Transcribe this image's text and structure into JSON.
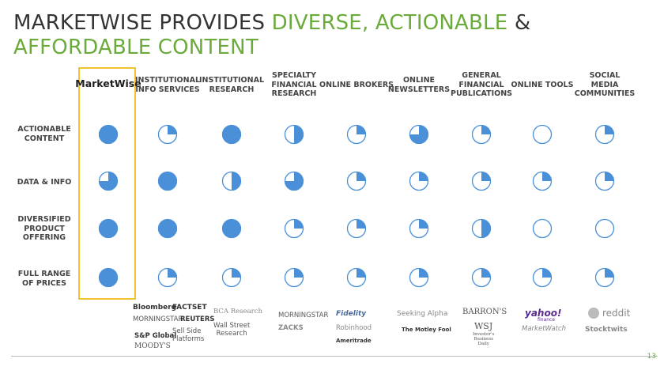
{
  "title": {
    "part1": "MARKETWISE PROVIDES ",
    "green1": "DIVERSE, ACTIONABLE",
    "amp": " & ",
    "green2": "AFFORDABLE CONTENT"
  },
  "colors": {
    "accent_green": "#6aab3c",
    "fill_blue": "#4a90d9",
    "highlight": "#f2c230"
  },
  "columns": [
    {
      "label": "MarketWise"
    },
    {
      "label": "INSTITUTIONAL\nINFO SERVICES"
    },
    {
      "label": "INSTITUTIONAL\nRESEARCH"
    },
    {
      "label": "SPECIALTY\nFINANCIAL\nRESEARCH"
    },
    {
      "label": "ONLINE BROKERS"
    },
    {
      "label": "ONLINE\nNEWSLETTERS"
    },
    {
      "label": "GENERAL\nFINANCIAL\nPUBLICATIONS"
    },
    {
      "label": "ONLINE TOOLS"
    },
    {
      "label": "SOCIAL\nMEDIA\nCOMMUNITIES"
    }
  ],
  "rows": [
    {
      "label": "ACTIONABLE\nCONTENT",
      "fills": [
        1,
        0.25,
        1,
        0.5,
        0.25,
        0.75,
        0.25,
        0,
        0.25
      ]
    },
    {
      "label": "DATA & INFO",
      "fills": [
        0.75,
        1,
        0.5,
        0.75,
        0.25,
        0.25,
        0.25,
        0.25,
        0.25
      ]
    },
    {
      "label": "DIVERSIFIED\nPRODUCT\nOFFERING",
      "fills": [
        1,
        1,
        1,
        0.25,
        0.25,
        0.25,
        0.5,
        0,
        0
      ]
    },
    {
      "label": "FULL RANGE\nOF PRICES",
      "fills": [
        1,
        0.25,
        0.25,
        0.25,
        0.25,
        0.25,
        0.25,
        0.25,
        0.25
      ]
    }
  ],
  "logos": {
    "info_services": [
      "Bloomberg",
      "FACTSET",
      "MORNINGSTAR",
      "REUTERS",
      "S&P Global",
      "MOODY'S",
      "Sell Side\nPlatforms"
    ],
    "research": [
      "BCA Research",
      "Wall Street\nResearch"
    ],
    "specialty": [
      "MORNINGSTAR",
      "ZACKS"
    ],
    "brokers": [
      "Fidelity",
      "Robinhood",
      "Ameritrade"
    ],
    "newsletters": [
      "Seeking Alpha",
      "The Motley Fool"
    ],
    "publications": [
      "BARRON'S",
      "WSJ",
      "Investor's\nBusiness\nDaily"
    ],
    "tools": [
      "yahoo!",
      "finance",
      "MarketWatch"
    ],
    "social": [
      "reddit",
      "Stocktwits"
    ]
  },
  "page_number": "13"
}
